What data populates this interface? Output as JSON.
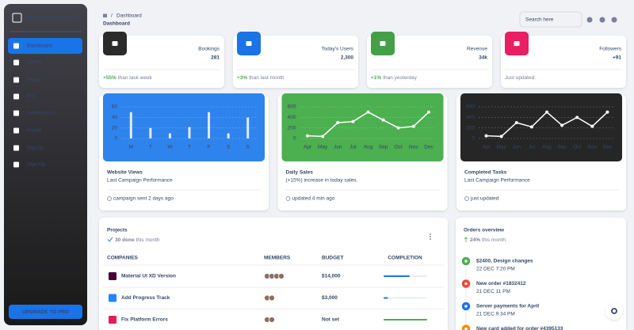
{
  "sidebar": {
    "brand": "Material Dashboard 2",
    "nav": [
      "Dashboard",
      "Tables",
      "Billing",
      "RTL",
      "Notifications",
      "Profile",
      "Sign In",
      "Sign Up"
    ],
    "upgrade": "UPGRADE TO PRO"
  },
  "header": {
    "breadcrumb_separator": "/",
    "breadcrumb": "Dashboard",
    "title": "Dashboard",
    "search": "Search here"
  },
  "stats": [
    {
      "label": "Bookings",
      "value": "281",
      "change": "+55%",
      "note": "than lask week",
      "color": "#2b2b2b"
    },
    {
      "label": "Today's Users",
      "value": "2,300",
      "change": "+3%",
      "note": "than last month",
      "color": "#1a73e8"
    },
    {
      "label": "Revenue",
      "value": "34k",
      "change": "+1%",
      "note": "than yesterday",
      "color": "#43a047"
    },
    {
      "label": "Followers",
      "value": "+91",
      "note": "Just updated",
      "color": "#e91e63"
    }
  ],
  "charts": [
    {
      "type": "bar",
      "title": "Website Views",
      "subtitle": "Last Campaign Performance",
      "footer": "campaign sent 2 days ago",
      "color": "#2f83ec",
      "categories": [
        "M",
        "T",
        "W",
        "T",
        "F",
        "S",
        "S"
      ],
      "values": [
        50,
        20,
        10,
        22,
        50,
        10,
        40
      ],
      "ylim": [
        0,
        60
      ],
      "yticks": [
        0,
        20,
        40,
        60
      ]
    },
    {
      "type": "line",
      "title": "Daily Sales",
      "subtitle": "(+15%) increase in today sales.",
      "footer": "updated 4 min ago",
      "color": "#4caf50",
      "categories": [
        "Apr",
        "May",
        "Jun",
        "Jul",
        "Aug",
        "Sep",
        "Oct",
        "Nov",
        "Dec"
      ],
      "values": [
        50,
        40,
        300,
        320,
        500,
        350,
        200,
        230,
        500
      ],
      "ylim": [
        0,
        600
      ],
      "yticks": [
        0,
        200,
        400,
        600
      ]
    },
    {
      "type": "line",
      "title": "Completed Tasks",
      "subtitle": "Last Campaign Performance",
      "footer": "just updated",
      "color": "#262626",
      "categories": [
        "Apr",
        "May",
        "Jun",
        "Jul",
        "Aug",
        "Sep",
        "Oct",
        "Nov",
        "Dec"
      ],
      "values": [
        50,
        40,
        300,
        220,
        500,
        250,
        400,
        230,
        500
      ],
      "ylim": [
        0,
        600
      ],
      "yticks": [
        0,
        200,
        400,
        600
      ]
    }
  ],
  "projects": {
    "title": "Projects",
    "done": "30 done",
    "period": "this month",
    "columns": [
      "COMPANIES",
      "MEMBERS",
      "BUDGET",
      "COMPLETION"
    ],
    "rows": [
      {
        "company": "Material UI XD Version",
        "budget": "$14,000",
        "completion": 60,
        "color": "#1a73e8",
        "icon_color": "#470137"
      },
      {
        "company": "Add Progress Track",
        "budget": "$3,000",
        "completion": 10,
        "color": "#1a73e8",
        "icon_color": "#2684ff"
      },
      {
        "company": "Fix Platform Errors",
        "budget": "Not set",
        "completion": 100,
        "color": "#4caf50",
        "icon_color": "#e01e5a"
      }
    ]
  },
  "orders": {
    "title": "Orders overview",
    "change": "24%",
    "period": "this month",
    "items": [
      {
        "title": "$2400, Design changes",
        "date": "22 DEC 7:20 PM",
        "color": "#4caf50"
      },
      {
        "title": "New order #1832412",
        "date": "21 DEC 11 PM",
        "color": "#f44335"
      },
      {
        "title": "Server payments for April",
        "date": "21 DEC 9:34 PM",
        "color": "#1a73e8"
      },
      {
        "title": "New card added for order #4395133",
        "color": "#fb8c00"
      }
    ]
  }
}
